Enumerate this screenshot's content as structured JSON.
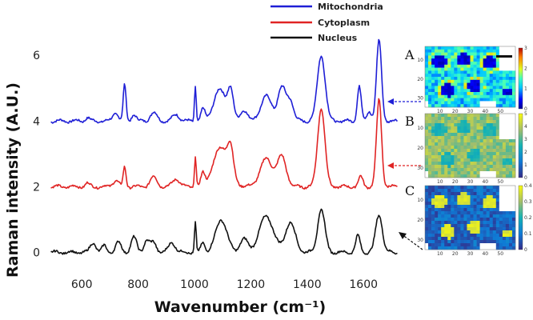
{
  "chart_data": {
    "type": "line",
    "xlabel": "Wavenumber (cm⁻¹)",
    "ylabel": "Raman intensity (A.U.)",
    "xlim": [
      480,
      1730
    ],
    "ylim": [
      -0.6,
      7.2
    ],
    "xticks": [
      "600",
      "800",
      "1000",
      "1200",
      "1400",
      "1600"
    ],
    "yticks": [
      "0",
      "2",
      "4",
      "6"
    ],
    "legend": [
      {
        "name": "Mitochondria",
        "color": "#1f1fd6"
      },
      {
        "name": "Cytoplasm",
        "color": "#e02424"
      },
      {
        "name": "Nucleus",
        "color": "#111111"
      }
    ],
    "series": [
      {
        "name": "Mitochondria",
        "color": "#1f1fd6",
        "baseline": 4.0,
        "peaks": [
          [
            620,
            0.1,
            8
          ],
          [
            720,
            0.25,
            10
          ],
          [
            752,
            1.1,
            5
          ],
          [
            785,
            0.2,
            8
          ],
          [
            855,
            0.25,
            12
          ],
          [
            935,
            0.2,
            12
          ],
          [
            1003,
            1.1,
            3
          ],
          [
            1030,
            0.35,
            7
          ],
          [
            1090,
            0.95,
            22
          ],
          [
            1128,
            0.85,
            10
          ],
          [
            1175,
            0.35,
            12
          ],
          [
            1255,
            0.75,
            20
          ],
          [
            1310,
            1.0,
            14
          ],
          [
            1340,
            0.6,
            12
          ],
          [
            1450,
            2.0,
            14
          ],
          [
            1585,
            1.05,
            7
          ],
          [
            1620,
            0.3,
            8
          ],
          [
            1655,
            2.45,
            9
          ]
        ]
      },
      {
        "name": "Cytoplasm",
        "color": "#e02424",
        "baseline": 2.0,
        "peaks": [
          [
            620,
            0.1,
            8
          ],
          [
            720,
            0.2,
            10
          ],
          [
            752,
            0.6,
            5
          ],
          [
            855,
            0.3,
            12
          ],
          [
            935,
            0.25,
            12
          ],
          [
            1003,
            0.95,
            3
          ],
          [
            1030,
            0.35,
            7
          ],
          [
            1095,
            1.2,
            28
          ],
          [
            1128,
            0.75,
            10
          ],
          [
            1255,
            0.85,
            22
          ],
          [
            1310,
            0.9,
            16
          ],
          [
            1450,
            2.4,
            13
          ],
          [
            1590,
            0.3,
            8
          ],
          [
            1655,
            2.65,
            9
          ]
        ]
      },
      {
        "name": "Nucleus",
        "color": "#111111",
        "baseline": 0.0,
        "peaks": [
          [
            640,
            0.3,
            10
          ],
          [
            680,
            0.2,
            8
          ],
          [
            730,
            0.3,
            10
          ],
          [
            785,
            0.45,
            10
          ],
          [
            830,
            0.35,
            10
          ],
          [
            855,
            0.3,
            10
          ],
          [
            920,
            0.3,
            12
          ],
          [
            1003,
            0.9,
            3
          ],
          [
            1030,
            0.3,
            7
          ],
          [
            1095,
            1.0,
            20
          ],
          [
            1175,
            0.4,
            14
          ],
          [
            1255,
            1.1,
            25
          ],
          [
            1340,
            0.9,
            18
          ],
          [
            1450,
            1.3,
            13
          ],
          [
            1580,
            0.5,
            8
          ],
          [
            1655,
            1.15,
            12
          ]
        ]
      }
    ]
  },
  "insets": [
    {
      "letter": "A",
      "colorbar_ticks": [
        "0",
        "1",
        "2",
        "3"
      ],
      "arrow_color": "#1f1fd6",
      "map_type": "mito"
    },
    {
      "letter": "B",
      "colorbar_ticks": [
        "0",
        "1",
        "2",
        "3",
        "4",
        "5"
      ],
      "arrow_color": "#e02424",
      "map_type": "cyto"
    },
    {
      "letter": "C",
      "colorbar_ticks": [
        "0",
        "0.1",
        "0.2",
        "0.3",
        "0.4"
      ],
      "arrow_color": "#111111",
      "map_type": "nuc"
    }
  ],
  "map_axes": {
    "x_ticks": [
      "10",
      "20",
      "30",
      "40",
      "50"
    ],
    "y_ticks": [
      "10",
      "20",
      "30"
    ]
  }
}
